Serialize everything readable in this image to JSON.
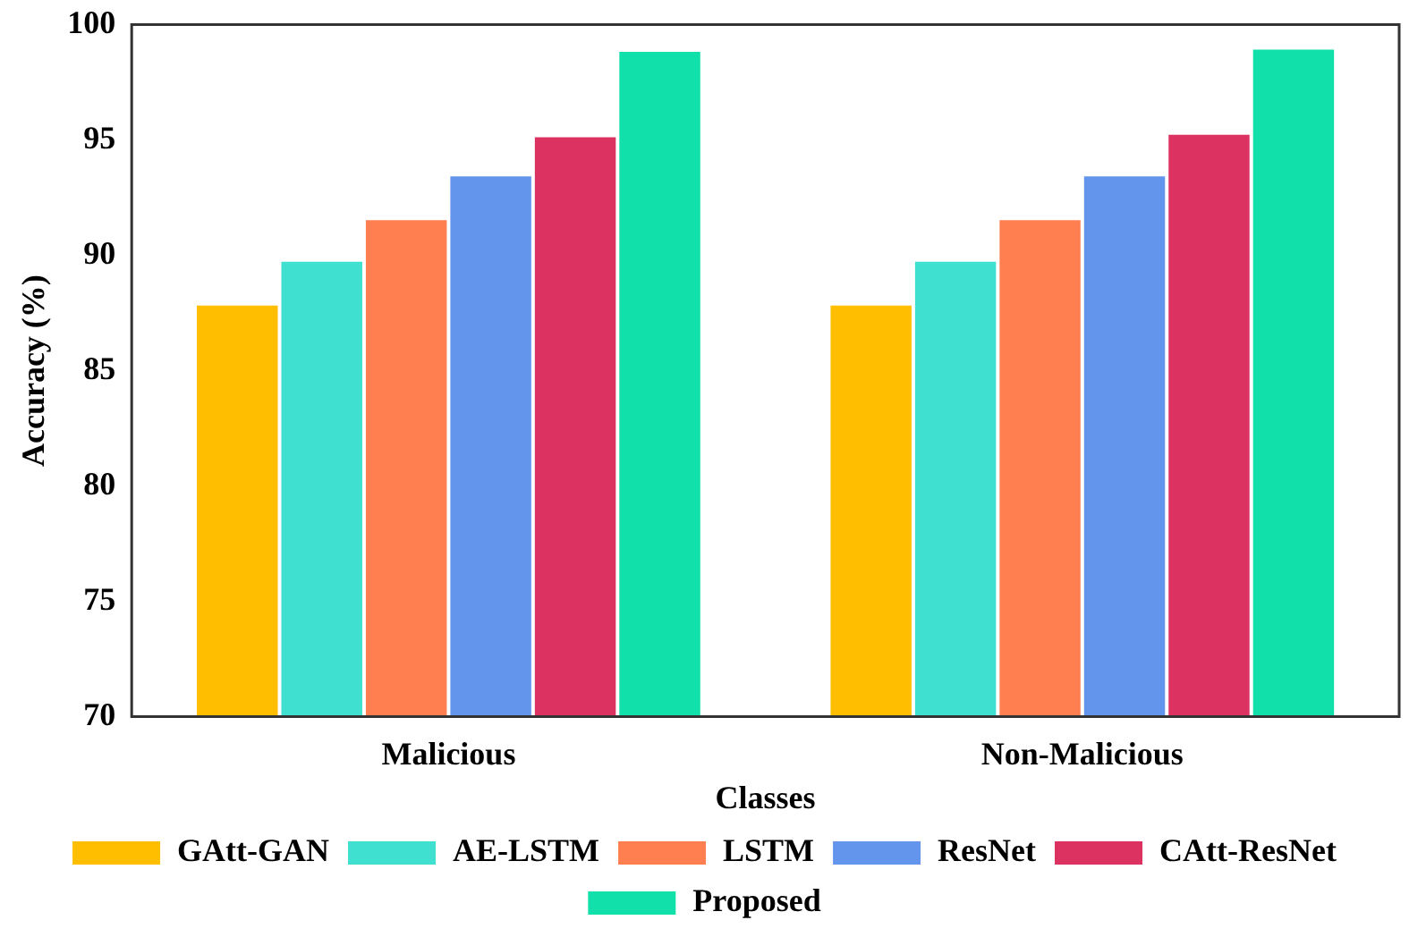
{
  "chart_data": {
    "type": "bar",
    "xlabel": "Classes",
    "ylabel": "Accuracy (%)",
    "categories": [
      "Malicious",
      "Non-Malicious"
    ],
    "series": [
      {
        "name": "GAtt-GAN",
        "color": "#ffbe00",
        "values": [
          87.9,
          87.9
        ]
      },
      {
        "name": "AE-LSTM",
        "color": "#40e0d0",
        "values": [
          89.8,
          89.8
        ]
      },
      {
        "name": "LSTM",
        "color": "#ff7f50",
        "values": [
          91.6,
          91.6
        ]
      },
      {
        "name": "ResNet",
        "color": "#6495ed",
        "values": [
          93.5,
          93.5
        ]
      },
      {
        "name": "CAtt-ResNet",
        "color": "#dc3262",
        "values": [
          95.2,
          95.3
        ]
      },
      {
        "name": "Proposed",
        "color": "#12e0aa",
        "values": [
          98.9,
          99.0
        ]
      }
    ],
    "ylim": [
      70,
      100
    ],
    "yticks": [
      70,
      75,
      80,
      85,
      90,
      95,
      100
    ],
    "grid": false,
    "legend": "bottom"
  }
}
